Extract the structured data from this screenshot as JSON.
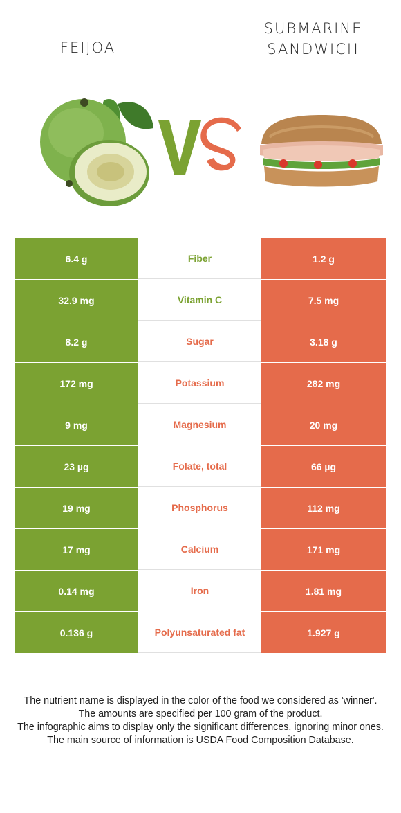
{
  "titles": {
    "left": "FEIJOA",
    "right": "SUBMARINE SANDWICH"
  },
  "vs_text": "VS",
  "colors": {
    "left": "#7ba232",
    "right": "#e56b4b"
  },
  "rows": [
    {
      "left": "6.4 g",
      "nutrient": "Fiber",
      "right": "1.2 g",
      "winner": "left"
    },
    {
      "left": "32.9 mg",
      "nutrient": "Vitamin C",
      "right": "7.5 mg",
      "winner": "left"
    },
    {
      "left": "8.2 g",
      "nutrient": "Sugar",
      "right": "3.18 g",
      "winner": "right"
    },
    {
      "left": "172 mg",
      "nutrient": "Potassium",
      "right": "282 mg",
      "winner": "right"
    },
    {
      "left": "9 mg",
      "nutrient": "Magnesium",
      "right": "20 mg",
      "winner": "right"
    },
    {
      "left": "23 µg",
      "nutrient": "Folate, total",
      "right": "66 µg",
      "winner": "right"
    },
    {
      "left": "19 mg",
      "nutrient": "Phosphorus",
      "right": "112 mg",
      "winner": "right"
    },
    {
      "left": "17 mg",
      "nutrient": "Calcium",
      "right": "171 mg",
      "winner": "right"
    },
    {
      "left": "0.14 mg",
      "nutrient": "Iron",
      "right": "1.81 mg",
      "winner": "right"
    },
    {
      "left": "0.136 g",
      "nutrient": "Polyunsaturated fat",
      "right": "1.927 g",
      "winner": "right"
    }
  ],
  "footer": [
    "The nutrient name is displayed in the color of the food we considered as 'winner'.",
    "The amounts are specified per 100 gram of the product.",
    "The infographic aims to display only the significant differences, ignoring minor ones.",
    "The main source of information is USDA Food Composition Database."
  ]
}
